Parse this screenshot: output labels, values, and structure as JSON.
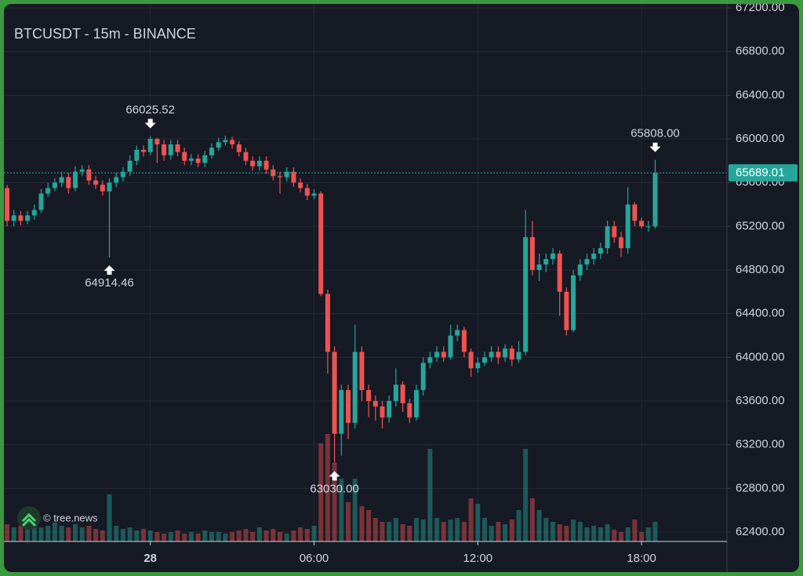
{
  "chart_data": {
    "type": "candlestick",
    "title": "BTCUSDT - 15m - BINANCE",
    "watermark": "© tree.news",
    "categories": [
      null,
      null,
      null,
      null,
      null,
      null,
      null,
      null,
      null,
      null,
      null,
      null,
      null,
      null,
      null,
      null,
      null,
      null,
      null,
      null,
      null,
      "28",
      null,
      null,
      null,
      null,
      null,
      null,
      null,
      null,
      null,
      null,
      null,
      null,
      null,
      null,
      null,
      null,
      null,
      null,
      null,
      null,
      null,
      null,
      null,
      "06:00",
      null,
      null,
      null,
      null,
      null,
      null,
      null,
      null,
      null,
      null,
      null,
      null,
      null,
      null,
      null,
      null,
      null,
      null,
      null,
      null,
      null,
      null,
      null,
      "12:00",
      null,
      null,
      null,
      null,
      null,
      null,
      null,
      null,
      null,
      null,
      null,
      null,
      null,
      null,
      null,
      null,
      null,
      null,
      null,
      null,
      null,
      null,
      null,
      "18:00",
      null,
      null
    ],
    "open": [
      65550,
      65250,
      65300,
      65250,
      65300,
      65350,
      65500,
      65550,
      65600,
      65650,
      65550,
      65700,
      65720,
      65620,
      65580,
      65520,
      65600,
      65650,
      65700,
      65800,
      65900,
      65880,
      66000,
      65950,
      65850,
      65950,
      65880,
      65800,
      65820,
      65780,
      65850,
      65920,
      65970,
      65990,
      65950,
      65880,
      65800,
      65750,
      65800,
      65720,
      65660,
      65650,
      65700,
      65600,
      65550,
      65480,
      65500,
      64580,
      64050,
      63300,
      63700,
      63400,
      64050,
      63700,
      63600,
      63550,
      63450,
      63600,
      63750,
      63580,
      63450,
      63700,
      63950,
      64000,
      64050,
      64000,
      64200,
      64250,
      64050,
      63900,
      63950,
      64000,
      64050,
      64000,
      64080,
      63980,
      64050,
      65100,
      64800,
      64850,
      64900,
      64950,
      64600,
      64250,
      64750,
      64850,
      64900,
      64950,
      65000,
      65200,
      65100,
      65000,
      65400,
      65250,
      65200,
      65200
    ],
    "high": [
      65580,
      65350,
      65340,
      65340,
      65400,
      65540,
      65600,
      65640,
      65700,
      65690,
      65750,
      65760,
      65760,
      65660,
      65620,
      65640,
      65690,
      65740,
      65850,
      65940,
      65940,
      66025.52,
      66010,
      65990,
      65990,
      65990,
      65920,
      65860,
      65860,
      65890,
      65960,
      66010,
      66030,
      66020,
      65980,
      65920,
      65840,
      65840,
      65840,
      65760,
      65700,
      65740,
      65740,
      65640,
      65590,
      65540,
      65520,
      64620,
      64100,
      63750,
      63750,
      64300,
      64100,
      63750,
      63650,
      63600,
      63650,
      63900,
      63780,
      63620,
      63750,
      64000,
      64050,
      64100,
      64100,
      64300,
      64300,
      64280,
      64080,
      64000,
      64050,
      64100,
      64100,
      64120,
      64110,
      64150,
      65350,
      65250,
      64950,
      64950,
      65000,
      64980,
      64640,
      64800,
      64900,
      64950,
      65000,
      65050,
      65250,
      65250,
      65150,
      65560,
      65420,
      65280,
      65250,
      65808
    ],
    "low": [
      65200,
      65200,
      65210,
      65220,
      65260,
      65320,
      65470,
      65520,
      65560,
      65500,
      65520,
      65660,
      65580,
      65540,
      65480,
      64914.46,
      65560,
      65610,
      65660,
      65760,
      65840,
      65850,
      65780,
      65800,
      65810,
      65840,
      65760,
      65760,
      65740,
      65740,
      65820,
      65890,
      65940,
      65910,
      65840,
      65760,
      65710,
      65710,
      65680,
      65620,
      65500,
      65610,
      65560,
      65510,
      65440,
      65450,
      64560,
      63850,
      63030,
      63100,
      63250,
      63350,
      63600,
      63450,
      63420,
      63350,
      63400,
      63550,
      63500,
      63400,
      63420,
      63650,
      63900,
      63960,
      63960,
      63980,
      64150,
      64000,
      63820,
      63860,
      63920,
      63960,
      63940,
      63960,
      63920,
      63950,
      64020,
      64750,
      64700,
      64780,
      64850,
      64380,
      64200,
      64230,
      64700,
      64800,
      64850,
      64900,
      64950,
      65050,
      64920,
      64950,
      65200,
      65180,
      65150,
      65180
    ],
    "close": [
      65250,
      65300,
      65250,
      65300,
      65350,
      65500,
      65550,
      65600,
      65650,
      65550,
      65700,
      65720,
      65620,
      65580,
      65520,
      65600,
      65650,
      65700,
      65800,
      65900,
      65880,
      66000,
      65950,
      65850,
      65950,
      65880,
      65800,
      65820,
      65780,
      65850,
      65920,
      65970,
      65990,
      65950,
      65880,
      65800,
      65750,
      65800,
      65720,
      65660,
      65650,
      65700,
      65600,
      65550,
      65480,
      65500,
      64580,
      64050,
      63300,
      63700,
      63400,
      64050,
      63700,
      63600,
      63550,
      63450,
      63600,
      63750,
      63580,
      63450,
      63700,
      63950,
      64000,
      64050,
      64000,
      64200,
      64250,
      64050,
      63900,
      63950,
      64000,
      64050,
      64000,
      64080,
      63980,
      64050,
      65100,
      64800,
      64850,
      64900,
      64950,
      64600,
      64250,
      64750,
      64850,
      64900,
      64950,
      65000,
      65200,
      65100,
      65000,
      65400,
      65250,
      65200,
      65200,
      65689.01
    ],
    "volume": [
      22,
      18,
      20,
      16,
      22,
      18,
      20,
      24,
      20,
      18,
      22,
      18,
      20,
      16,
      14,
      60,
      20,
      16,
      18,
      14,
      16,
      14,
      12,
      10,
      12,
      14,
      10,
      12,
      10,
      14,
      12,
      12,
      10,
      12,
      14,
      16,
      12,
      18,
      14,
      16,
      12,
      10,
      14,
      18,
      16,
      20,
      125,
      137,
      100,
      80,
      50,
      80,
      45,
      40,
      30,
      25,
      25,
      30,
      22,
      20,
      30,
      28,
      118,
      30,
      25,
      28,
      30,
      25,
      55,
      48,
      30,
      20,
      25,
      22,
      28,
      40,
      118,
      55,
      40,
      30,
      25,
      22,
      20,
      28,
      25,
      18,
      20,
      18,
      22,
      15,
      12,
      18,
      28,
      12,
      18,
      25
    ],
    "up_color": "#26a69a",
    "down_color": "#ef5350",
    "annotations": [
      {
        "value": 66025.52,
        "label": "66025.52"
      },
      {
        "value": 64914.46,
        "label": "64914.46"
      },
      {
        "value": 63030,
        "label": "63030.00"
      },
      {
        "value": 65808,
        "label": "65808.00"
      }
    ],
    "last_price": {
      "value": 65689.01,
      "label": "65689.01"
    },
    "ylim": [
      62314,
      67272
    ],
    "yticks": [
      {
        "value": 62400,
        "label": "62400.00"
      },
      {
        "value": 62800,
        "label": "62800.00"
      },
      {
        "value": 63200,
        "label": "63200.00"
      },
      {
        "value": 63600,
        "label": "63600.00"
      },
      {
        "value": 64000,
        "label": "64000.00"
      },
      {
        "value": 64400,
        "label": "64400.00"
      },
      {
        "value": 64800,
        "label": "64800.00"
      },
      {
        "value": 65200,
        "label": "65200.00"
      },
      {
        "value": 65600,
        "label": "65600.00"
      },
      {
        "value": 66000,
        "label": "66000.00"
      },
      {
        "value": 66400,
        "label": "66400.00"
      },
      {
        "value": 66800,
        "label": "66800.00"
      },
      {
        "value": 67200,
        "label": "67200.00"
      }
    ],
    "grid": true
  }
}
